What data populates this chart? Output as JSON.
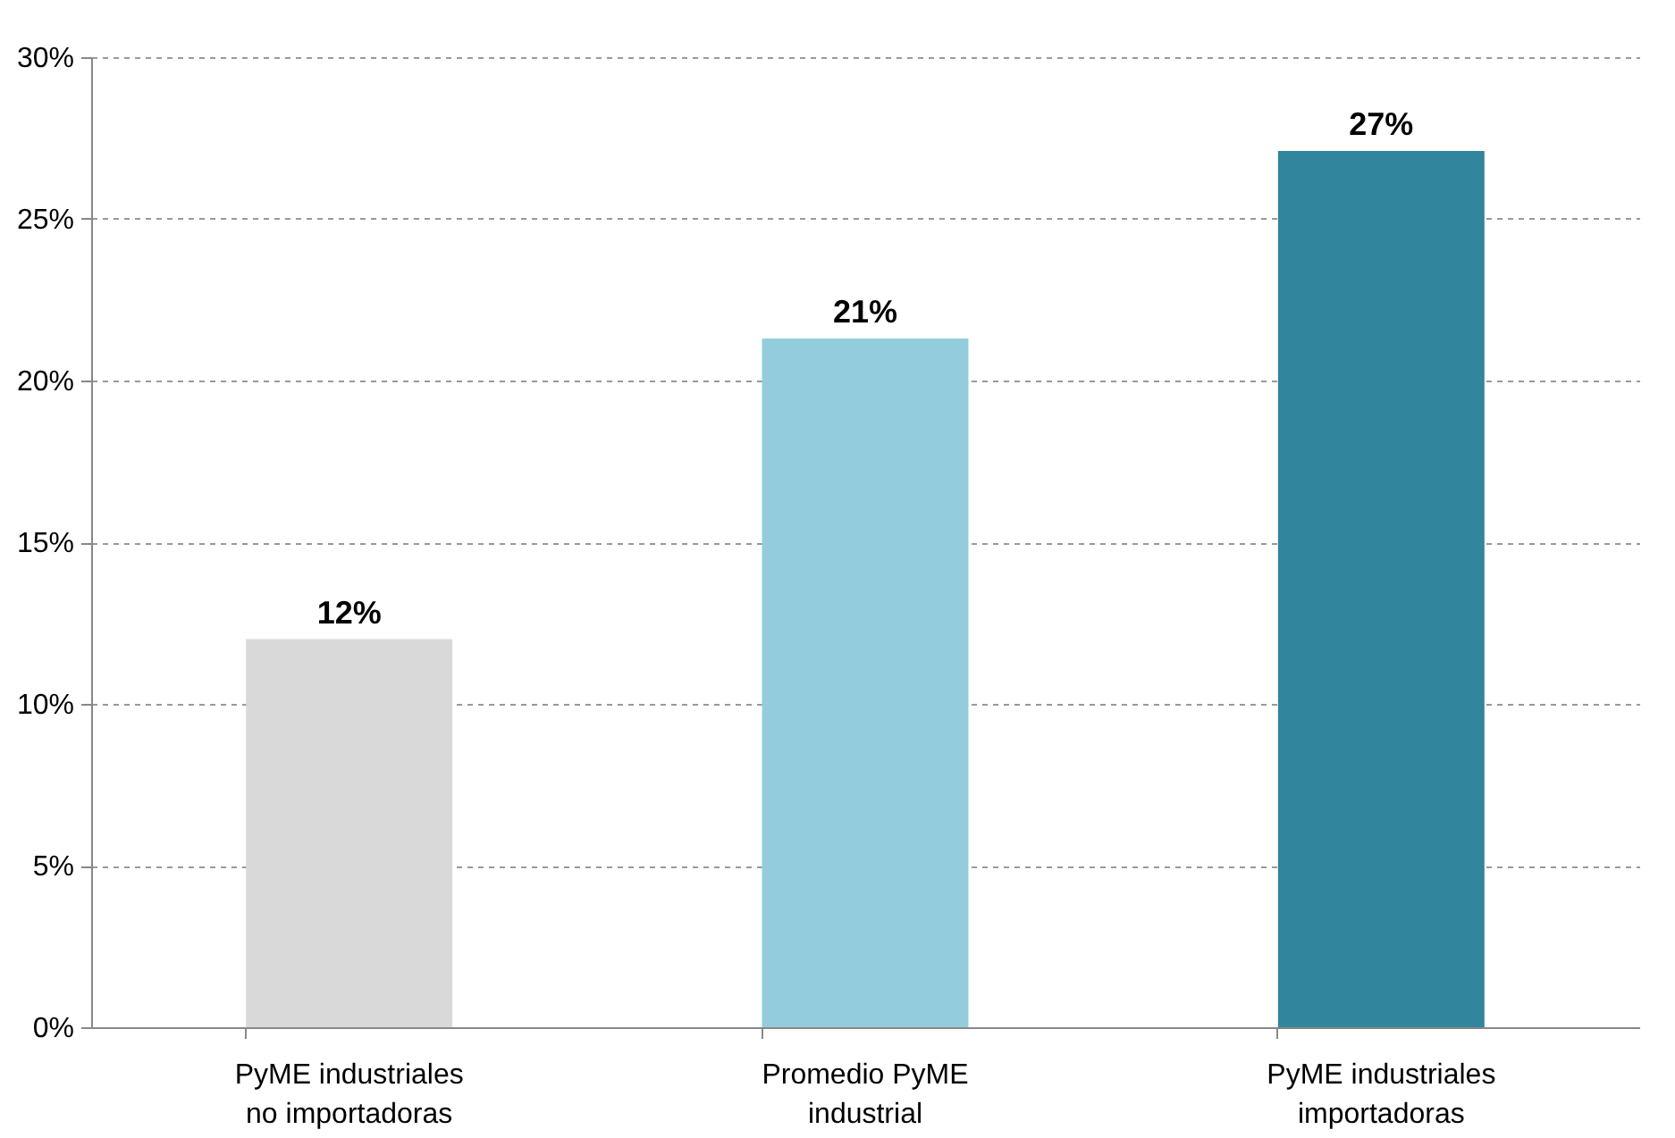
{
  "chart_data": {
    "type": "bar",
    "categories": [
      "PyME industriales no importadoras",
      "Promedio PyME industrial",
      "PyME industriales importadoras"
    ],
    "values": [
      12,
      21.3,
      27.1
    ],
    "colors": [
      "#d9d9d9",
      "#93cddd",
      "#31859c"
    ],
    "value_labels": [
      "12%",
      "21%",
      "27%"
    ],
    "ylim": [
      0,
      30
    ],
    "yticks": [
      {
        "value": 0,
        "label": "0%"
      },
      {
        "value": 5,
        "label": "5%"
      },
      {
        "value": 10,
        "label": "10%"
      },
      {
        "value": 15,
        "label": "15%"
      },
      {
        "value": 20,
        "label": "20%"
      },
      {
        "value": 25,
        "label": "25%"
      },
      {
        "value": 30,
        "label": "30%"
      }
    ],
    "grid": "y",
    "line_style": "dashed"
  }
}
